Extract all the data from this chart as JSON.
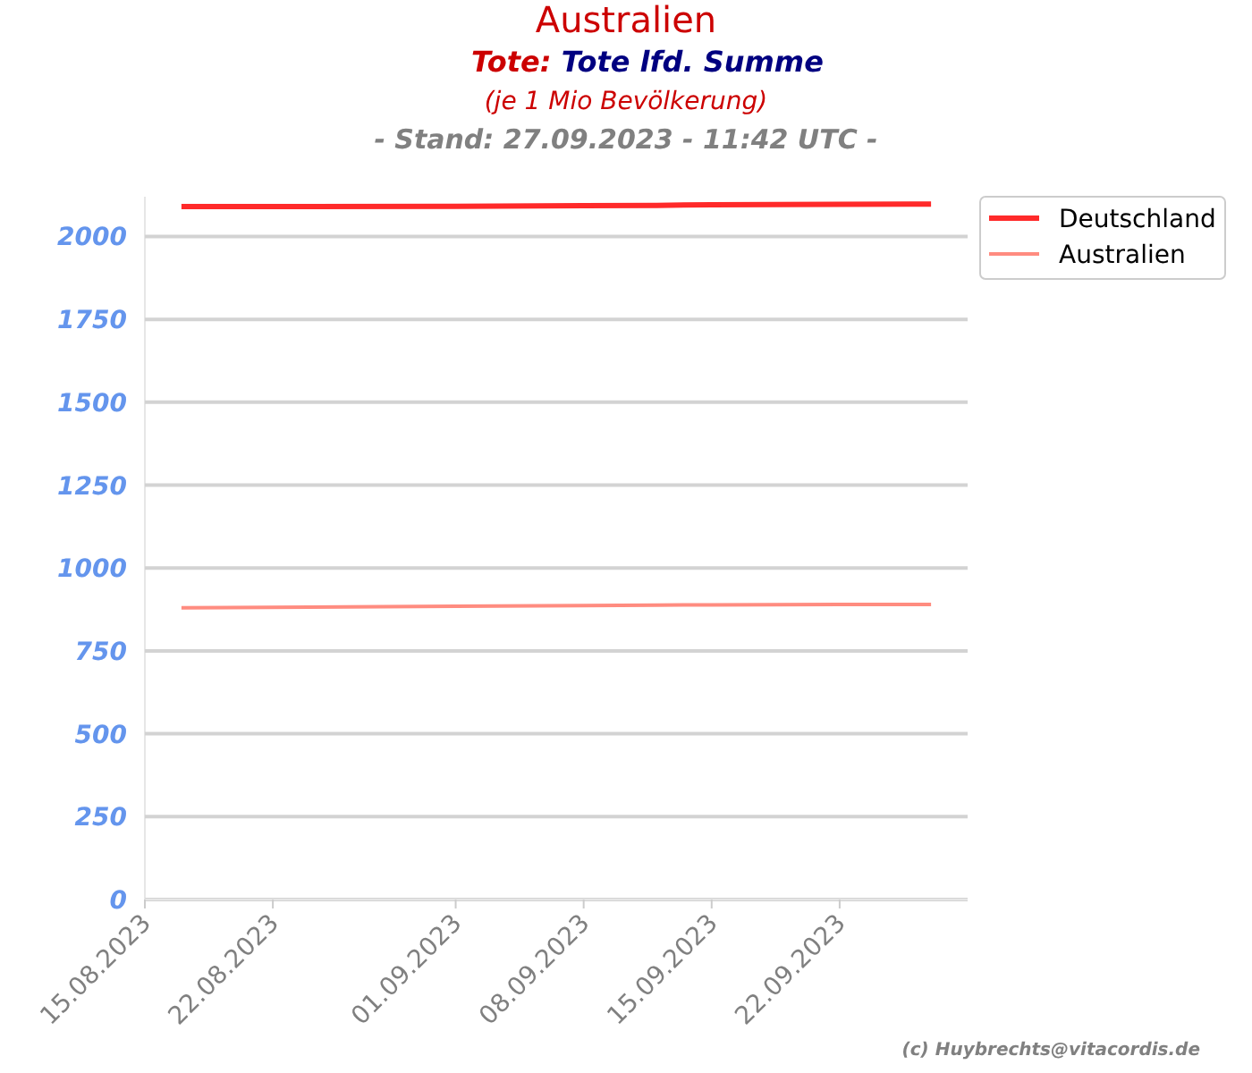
{
  "chart_data": {
    "type": "line",
    "title": "Australien",
    "subtitle": "Tote: Tote lfd. Summe",
    "annotations": [
      "(je 1 Mio Bevölkerung)",
      "- Stand: 27.09.2023 - 11:42 UTC -",
      "(c) Huybrechts@vitacordis.de"
    ],
    "x": [
      "2023-08-17",
      "2023-08-24",
      "2023-09-01",
      "2023-09-08",
      "2023-09-12",
      "2023-09-15",
      "2023-09-22",
      "2023-09-27"
    ],
    "series": [
      {
        "name": "Deutschland",
        "color": "#ff2a2a",
        "values": [
          2090,
          2090,
          2091,
          2093,
          2094,
          2096,
          2097,
          2098
        ]
      },
      {
        "name": "Australien",
        "color": "#ff8c80",
        "values": [
          880,
          882,
          885,
          887,
          888,
          889,
          890,
          890
        ]
      }
    ],
    "xlim": [
      "2023-08-15",
      "2023-09-29"
    ],
    "xticks": [
      {
        "value": "2023-08-15",
        "label": "15.08.2023"
      },
      {
        "value": "2023-08-22",
        "label": "22.08.2023"
      },
      {
        "value": "2023-09-01",
        "label": "01.09.2023"
      },
      {
        "value": "2023-09-08",
        "label": "08.09.2023"
      },
      {
        "value": "2023-09-15",
        "label": "15.09.2023"
      },
      {
        "value": "2023-09-22",
        "label": "22.09.2023"
      }
    ],
    "ylim": [
      0,
      2120
    ],
    "yticks": [
      0,
      250,
      500,
      750,
      1000,
      1250,
      1500,
      1750,
      2000
    ],
    "grid": "y",
    "legend": "top right",
    "line_style": "solid",
    "marker": "none"
  }
}
